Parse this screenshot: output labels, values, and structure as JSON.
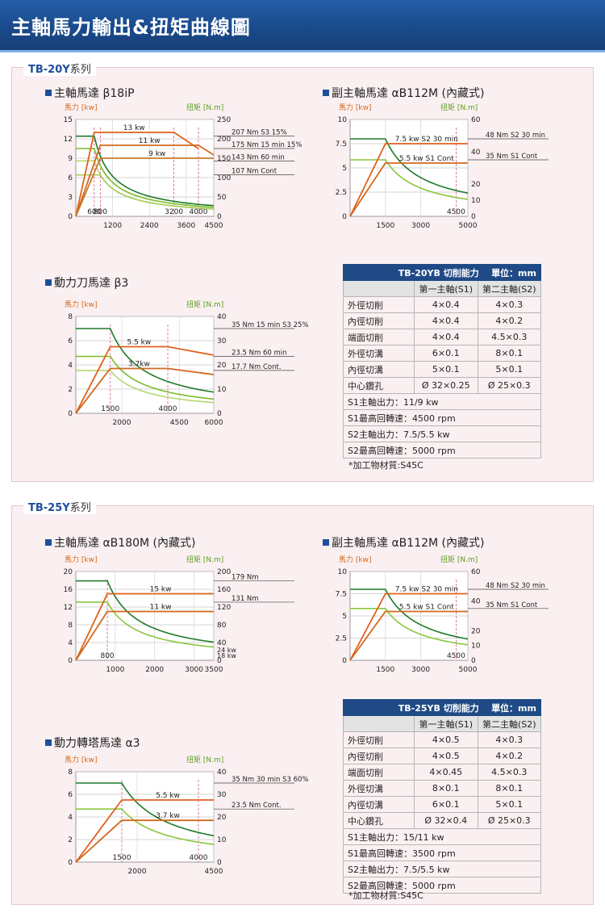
{
  "page": {
    "title": "主軸馬力輸出&扭矩曲線圖"
  },
  "sections": [
    {
      "series_name": "TB-20Y",
      "series_suffix": "系列",
      "motors": [
        {
          "title": "主軸馬達 β18iP"
        },
        {
          "title": "副主軸馬達 αB112M (內藏式)"
        },
        {
          "title": "動力刀馬達 β3"
        }
      ],
      "table": {
        "title": "TB-20YB 切削能力",
        "unit": "單位：mm",
        "col1": "第一主軸(S1)",
        "col2": "第二主軸(S2)",
        "rows": [
          {
            "label": "外徑切削",
            "s1": "4×0.4",
            "s2": "4×0.3"
          },
          {
            "label": "內徑切削",
            "s1": "4×0.4",
            "s2": "4×0.2"
          },
          {
            "label": "端面切削",
            "s1": "4×0.4",
            "s2": "4.5×0.3"
          },
          {
            "label": "外徑切溝",
            "s1": "6×0.1",
            "s2": "8×0.1"
          },
          {
            "label": "內徑切溝",
            "s1": "5×0.1",
            "s2": "5×0.1"
          },
          {
            "label": "中心鑽孔",
            "s1": "Ø 32×0.25",
            "s2": "Ø 25×0.3"
          }
        ],
        "notes": [
          "S1主軸出力：11/9 kw",
          "S1最高回轉速：4500 rpm",
          "S2主軸出力：7.5/5.5 kw",
          "S2最高回轉速：5000 rpm"
        ],
        "footnote": "*加工物材質:S45C"
      }
    },
    {
      "series_name": "TB-25Y",
      "series_suffix": "系列",
      "motors": [
        {
          "title": "主軸馬達 αB180M (內藏式)"
        },
        {
          "title": "副主軸馬達 αB112M (內藏式)"
        },
        {
          "title": "動力轉塔馬達 α3"
        }
      ],
      "table": {
        "title": "TB-25YB 切削能力",
        "unit": "單位：mm",
        "col1": "第一主軸(S1)",
        "col2": "第二主軸(S2)",
        "rows": [
          {
            "label": "外徑切削",
            "s1": "4×0.5",
            "s2": "4×0.3"
          },
          {
            "label": "內徑切削",
            "s1": "4×0.5",
            "s2": "4×0.2"
          },
          {
            "label": "端面切削",
            "s1": "4×0.45",
            "s2": "4.5×0.3"
          },
          {
            "label": "外徑切溝",
            "s1": "8×0.1",
            "s2": "8×0.1"
          },
          {
            "label": "內徑切溝",
            "s1": "6×0.1",
            "s2": "5×0.1"
          },
          {
            "label": "中心鑽孔",
            "s1": "Ø 32×0.4",
            "s2": "Ø 25×0.3"
          }
        ],
        "notes": [
          "S1主軸出力：15/11 kw",
          "S1最高回轉速：3500 rpm",
          "S2主軸出力：7.5/5.5 kw",
          "S2最高回轉速：5000 rpm"
        ],
        "footnote": "*加工物材質:S45C"
      }
    }
  ],
  "chart_data": [
    {
      "id": "tb20-main",
      "type": "line",
      "ylabel": "馬力 [kw]",
      "y2label": "扭矩 [N.m]",
      "xlim": [
        0,
        4500
      ],
      "ylim": [
        0,
        15
      ],
      "y2lim": [
        0,
        250
      ],
      "xticks": [
        1200,
        2400,
        3600,
        4500
      ],
      "xticks_top": [
        600,
        800,
        3200,
        4000
      ],
      "yticks": [
        0,
        3,
        6,
        9,
        12,
        15
      ],
      "y2ticks": [
        0,
        50,
        100,
        150,
        200,
        250
      ],
      "power_series": [
        {
          "name": "13 kw",
          "points": [
            [
              0,
              0
            ],
            [
              600,
              13
            ],
            [
              3200,
              13
            ],
            [
              4000,
              10.5
            ]
          ]
        },
        {
          "name": "11 kw",
          "points": [
            [
              0,
              0
            ],
            [
              800,
              11
            ],
            [
              4000,
              11
            ],
            [
              4500,
              9.5
            ]
          ]
        },
        {
          "name": "9 kw",
          "points": [
            [
              0,
              0
            ],
            [
              800,
              9
            ],
            [
              4500,
              9
            ]
          ]
        }
      ],
      "torque_series": [
        {
          "name": "207 Nm S3 15%",
          "value": 207,
          "flat_to": 600,
          "color": "#1e7a2a"
        },
        {
          "name": "175 Nm 15 min 15%",
          "value": 175,
          "flat_to": 600,
          "color": "#7dba29"
        },
        {
          "name": "143 Nm  60 min",
          "value": 143,
          "flat_to": 600,
          "color": "#b5d66e"
        },
        {
          "name": "107 Nm  Cont",
          "value": 107,
          "flat_to": 800,
          "color": "#a7cd5b"
        }
      ]
    },
    {
      "id": "tb20-sub",
      "type": "line",
      "ylabel": "馬力 [kw]",
      "y2label": "扭矩 [N.m]",
      "xlim": [
        0,
        5000
      ],
      "ylim": [
        0,
        10
      ],
      "y2lim": [
        0,
        60
      ],
      "xticks": [
        1500,
        3000,
        5000
      ],
      "xticks_top": [
        4500
      ],
      "yticks": [
        0,
        2.5,
        5,
        7.5,
        10
      ],
      "y2ticks": [
        0,
        10,
        20,
        40,
        60
      ],
      "power_series": [
        {
          "name": "7.5 kw S2 30 min",
          "points": [
            [
              0,
              0
            ],
            [
              1500,
              7.5
            ],
            [
              5000,
              7.5
            ]
          ]
        },
        {
          "name": "5.5 kw S1 Cont",
          "points": [
            [
              0,
              0
            ],
            [
              1500,
              5.5
            ],
            [
              5000,
              5.5
            ]
          ]
        }
      ],
      "torque_series": [
        {
          "name": "48 Nm S2 30 min",
          "value": 48,
          "flat_to": 1500,
          "color": "#1e7a2a"
        },
        {
          "name": "35 Nm S1 Cont",
          "value": 35,
          "flat_to": 1500,
          "color": "#8cc63f"
        }
      ]
    },
    {
      "id": "tb20-tool",
      "type": "line",
      "ylabel": "馬力 [kw]",
      "y2label": "扭矩 [N.m]",
      "xlim": [
        0,
        6000
      ],
      "ylim": [
        0,
        8
      ],
      "y2lim": [
        0,
        40
      ],
      "xticks": [
        2000,
        4500,
        6000
      ],
      "xticks_top": [
        1500,
        4000
      ],
      "yticks": [
        0,
        2,
        4,
        6,
        8
      ],
      "y2ticks": [
        0,
        10,
        20,
        30,
        40
      ],
      "power_series": [
        {
          "name": "5.5 kw",
          "points": [
            [
              0,
              0
            ],
            [
              1500,
              5.5
            ],
            [
              4000,
              5.5
            ],
            [
              6000,
              4.8
            ]
          ]
        },
        {
          "name": "3.7kw",
          "points": [
            [
              0,
              0
            ],
            [
              1500,
              3.7
            ],
            [
              4000,
              3.7
            ],
            [
              6000,
              3.2
            ]
          ]
        }
      ],
      "torque_series": [
        {
          "name": "35 Nm 15 min S3 25%",
          "value": 35,
          "flat_to": 1500,
          "color": "#1e7a2a"
        },
        {
          "name": "23.5 Nm 60 min",
          "value": 23.5,
          "flat_to": 1500,
          "color": "#7dba29"
        },
        {
          "name": "17.7 Nm Cont.",
          "value": 17.7,
          "flat_to": 1500,
          "color": "#b5d66e"
        }
      ]
    },
    {
      "id": "tb25-main",
      "type": "line",
      "ylabel": "馬力 [kw]",
      "y2label": "扭矩 [N.m]",
      "xlim": [
        0,
        3500
      ],
      "ylim": [
        0,
        20
      ],
      "y2lim": [
        0,
        200
      ],
      "xticks": [
        1000,
        2000,
        3000,
        3500
      ],
      "xticks_top": [
        800
      ],
      "yticks": [
        0,
        4,
        8,
        12,
        16,
        20
      ],
      "y2ticks": [
        0,
        40,
        80,
        120,
        160,
        200
      ],
      "power_series": [
        {
          "name": "15 kw",
          "points": [
            [
              0,
              0
            ],
            [
              800,
              15
            ],
            [
              3500,
              15
            ]
          ]
        },
        {
          "name": "11 kw",
          "points": [
            [
              0,
              0
            ],
            [
              800,
              11
            ],
            [
              3500,
              11
            ]
          ]
        }
      ],
      "torque_series": [
        {
          "name": "179 Nm",
          "value": 179,
          "flat_to": 800,
          "color": "#1e7a2a",
          "end_label": "24 kw"
        },
        {
          "name": "131 Nm",
          "value": 131,
          "flat_to": 800,
          "color": "#8cc63f",
          "end_label": "18 kw"
        }
      ]
    },
    {
      "id": "tb25-sub",
      "type": "line",
      "ylabel": "馬力 [kw]",
      "y2label": "扭矩 [N.m]",
      "xlim": [
        0,
        5000
      ],
      "ylim": [
        0,
        10
      ],
      "y2lim": [
        0,
        60
      ],
      "xticks": [
        1500,
        3000,
        5000
      ],
      "xticks_top": [
        4500
      ],
      "yticks": [
        0,
        2.5,
        5,
        7.5,
        10
      ],
      "y2ticks": [
        0,
        10,
        20,
        40,
        60
      ],
      "power_series": [
        {
          "name": "7.5 kw S2 30 min",
          "points": [
            [
              0,
              0
            ],
            [
              1500,
              7.5
            ],
            [
              5000,
              7.5
            ]
          ]
        },
        {
          "name": "5.5 kw S1 Cont",
          "points": [
            [
              0,
              0
            ],
            [
              1500,
              5.5
            ],
            [
              5000,
              5.5
            ]
          ]
        }
      ],
      "torque_series": [
        {
          "name": "48 Nm S2 30 min",
          "value": 48,
          "flat_to": 1500,
          "color": "#1e7a2a"
        },
        {
          "name": "35 Nm S1 Cont",
          "value": 35,
          "flat_to": 1500,
          "color": "#8cc63f"
        }
      ]
    },
    {
      "id": "tb25-tool",
      "type": "line",
      "ylabel": "馬力 [kw]",
      "y2label": "扭矩 [N.m]",
      "xlim": [
        0,
        4500
      ],
      "ylim": [
        0,
        8
      ],
      "y2lim": [
        0,
        40
      ],
      "xticks": [
        2000,
        4500
      ],
      "xticks_top": [
        1500,
        4000
      ],
      "yticks": [
        0,
        2,
        4,
        6,
        8
      ],
      "y2ticks": [
        0,
        10,
        20,
        30,
        40
      ],
      "power_series": [
        {
          "name": "5.5 kw",
          "points": [
            [
              0,
              0
            ],
            [
              1500,
              5.5
            ],
            [
              4500,
              5.5
            ]
          ]
        },
        {
          "name": "3.7 kw",
          "points": [
            [
              0,
              0
            ],
            [
              1500,
              3.7
            ],
            [
              4500,
              3.7
            ]
          ]
        }
      ],
      "torque_series": [
        {
          "name": "35 Nm 30 min S3 60%",
          "value": 35,
          "flat_to": 1500,
          "color": "#1e7a2a"
        },
        {
          "name": "23.5 Nm Cont.",
          "value": 23.5,
          "flat_to": 1500,
          "color": "#8cc63f"
        }
      ]
    }
  ]
}
